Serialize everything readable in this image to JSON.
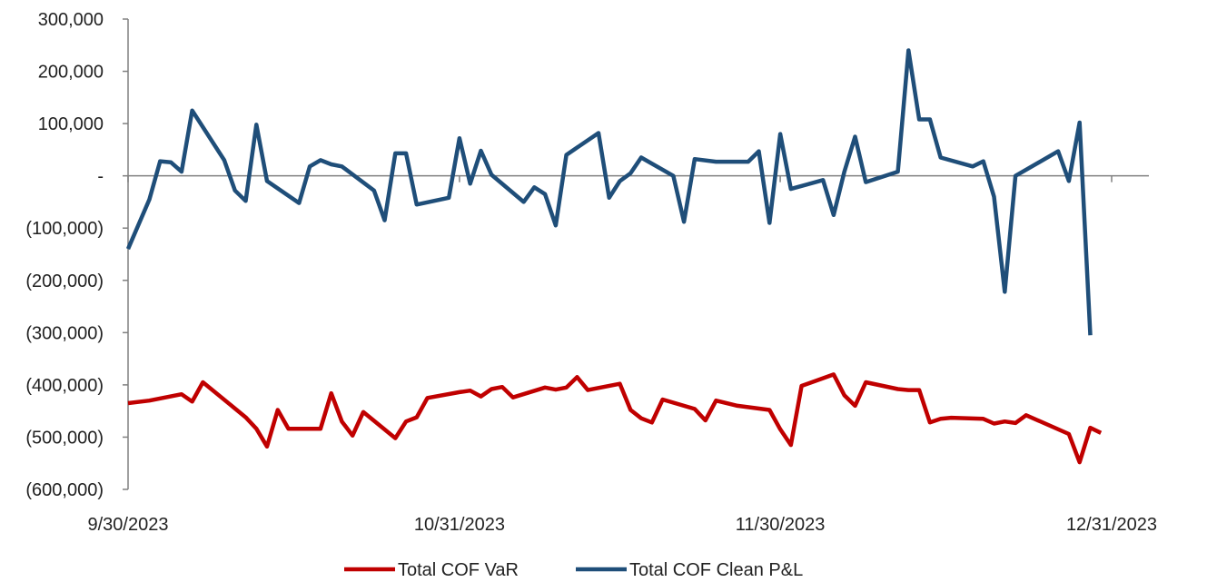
{
  "chart_data": {
    "type": "line",
    "title": "",
    "xlabel": "",
    "ylabel": "",
    "ylim": [
      -600000,
      300000
    ],
    "y_ticks": [
      {
        "value": 300000,
        "label": "300,000"
      },
      {
        "value": 200000,
        "label": "200,000"
      },
      {
        "value": 100000,
        "label": "100,000"
      },
      {
        "value": 0,
        "label": "-"
      },
      {
        "value": -100000,
        "label": "(100,000)"
      },
      {
        "value": -200000,
        "label": "(200,000)"
      },
      {
        "value": -300000,
        "label": "(300,000)"
      },
      {
        "value": -400000,
        "label": "(400,000)"
      },
      {
        "value": -500000,
        "label": "(500,000)"
      },
      {
        "value": -600000,
        "label": "(600,000)"
      }
    ],
    "xlim": [
      "2023-09-30",
      "2023-12-31"
    ],
    "x_ticks": [
      {
        "value": "2023-09-30",
        "label": "9/30/2023"
      },
      {
        "value": "2023-10-31",
        "label": "10/31/2023"
      },
      {
        "value": "2023-11-30",
        "label": "11/30/2023"
      },
      {
        "value": "2023-12-31",
        "label": "12/31/2023"
      }
    ],
    "grid": false,
    "legend_position": "bottom",
    "series": [
      {
        "name": "Total COF VaR",
        "color": "#c00000",
        "points": [
          [
            "2023-09-30",
            -435000
          ],
          [
            "2023-10-02",
            -430000
          ],
          [
            "2023-10-05",
            -418000
          ],
          [
            "2023-10-06",
            -432000
          ],
          [
            "2023-10-07",
            -395000
          ],
          [
            "2023-10-11",
            -462000
          ],
          [
            "2023-10-12",
            -484000
          ],
          [
            "2023-10-13",
            -518000
          ],
          [
            "2023-10-14",
            -448000
          ],
          [
            "2023-10-15",
            -484000
          ],
          [
            "2023-10-18",
            -484000
          ],
          [
            "2023-10-19",
            -416000
          ],
          [
            "2023-10-20",
            -470000
          ],
          [
            "2023-10-21",
            -497000
          ],
          [
            "2023-10-22",
            -452000
          ],
          [
            "2023-10-25",
            -502000
          ],
          [
            "2023-10-26",
            -470000
          ],
          [
            "2023-10-27",
            -462000
          ],
          [
            "2023-10-28",
            -425000
          ],
          [
            "2023-10-31",
            -414000
          ],
          [
            "2023-11-01",
            -411000
          ],
          [
            "2023-11-02",
            -422000
          ],
          [
            "2023-11-03",
            -408000
          ],
          [
            "2023-11-04",
            -404000
          ],
          [
            "2023-11-05",
            -424000
          ],
          [
            "2023-11-08",
            -405000
          ],
          [
            "2023-11-09",
            -409000
          ],
          [
            "2023-11-10",
            -405000
          ],
          [
            "2023-11-11",
            -385000
          ],
          [
            "2023-11-12",
            -410000
          ],
          [
            "2023-11-15",
            -398000
          ],
          [
            "2023-11-16",
            -448000
          ],
          [
            "2023-11-17",
            -464000
          ],
          [
            "2023-11-18",
            -472000
          ],
          [
            "2023-11-19",
            -428000
          ],
          [
            "2023-11-22",
            -446000
          ],
          [
            "2023-11-23",
            -468000
          ],
          [
            "2023-11-24",
            -430000
          ],
          [
            "2023-11-26",
            -440000
          ],
          [
            "2023-11-29",
            -448000
          ],
          [
            "2023-11-30",
            -485000
          ],
          [
            "2023-12-01",
            -515000
          ],
          [
            "2023-12-02",
            -402000
          ],
          [
            "2023-12-05",
            -380000
          ],
          [
            "2023-12-06",
            -420000
          ],
          [
            "2023-12-07",
            -440000
          ],
          [
            "2023-12-08",
            -395000
          ],
          [
            "2023-12-11",
            -408000
          ],
          [
            "2023-12-12",
            -410000
          ],
          [
            "2023-12-13",
            -410000
          ],
          [
            "2023-12-14",
            -472000
          ],
          [
            "2023-12-15",
            -465000
          ],
          [
            "2023-12-16",
            -463000
          ],
          [
            "2023-12-19",
            -465000
          ],
          [
            "2023-12-20",
            -474000
          ],
          [
            "2023-12-21",
            -470000
          ],
          [
            "2023-12-22",
            -473000
          ],
          [
            "2023-12-23",
            -458000
          ],
          [
            "2023-12-27",
            -494000
          ],
          [
            "2023-12-28",
            -548000
          ],
          [
            "2023-12-29",
            -482000
          ],
          [
            "2023-12-30",
            -492000
          ]
        ]
      },
      {
        "name": "Total COF Clean P&L",
        "color": "#1f4e79",
        "points": [
          [
            "2023-09-30",
            -140000
          ],
          [
            "2023-10-02",
            -45000
          ],
          [
            "2023-10-03",
            28000
          ],
          [
            "2023-10-04",
            26000
          ],
          [
            "2023-10-05",
            8000
          ],
          [
            "2023-10-06",
            125000
          ],
          [
            "2023-10-09",
            30000
          ],
          [
            "2023-10-10",
            -28000
          ],
          [
            "2023-10-11",
            -48000
          ],
          [
            "2023-10-12",
            98000
          ],
          [
            "2023-10-13",
            -10000
          ],
          [
            "2023-10-16",
            -52000
          ],
          [
            "2023-10-17",
            18000
          ],
          [
            "2023-10-18",
            30000
          ],
          [
            "2023-10-19",
            22000
          ],
          [
            "2023-10-20",
            18000
          ],
          [
            "2023-10-23",
            -28000
          ],
          [
            "2023-10-24",
            -85000
          ],
          [
            "2023-10-25",
            43000
          ],
          [
            "2023-10-26",
            43000
          ],
          [
            "2023-10-27",
            -55000
          ],
          [
            "2023-10-30",
            -42000
          ],
          [
            "2023-10-31",
            72000
          ],
          [
            "2023-11-01",
            -15000
          ],
          [
            "2023-11-02",
            48000
          ],
          [
            "2023-11-03",
            2000
          ],
          [
            "2023-11-06",
            -50000
          ],
          [
            "2023-11-07",
            -22000
          ],
          [
            "2023-11-08",
            -35000
          ],
          [
            "2023-11-09",
            -95000
          ],
          [
            "2023-11-10",
            40000
          ],
          [
            "2023-11-13",
            82000
          ],
          [
            "2023-11-14",
            -42000
          ],
          [
            "2023-11-15",
            -10000
          ],
          [
            "2023-11-16",
            5000
          ],
          [
            "2023-11-17",
            35000
          ],
          [
            "2023-11-20",
            0
          ],
          [
            "2023-11-21",
            -88000
          ],
          [
            "2023-11-22",
            32000
          ],
          [
            "2023-11-24",
            27000
          ],
          [
            "2023-11-27",
            27000
          ],
          [
            "2023-11-28",
            47000
          ],
          [
            "2023-11-29",
            -90000
          ],
          [
            "2023-11-30",
            80000
          ],
          [
            "2023-12-01",
            -25000
          ],
          [
            "2023-12-04",
            -8000
          ],
          [
            "2023-12-05",
            -75000
          ],
          [
            "2023-12-06",
            8000
          ],
          [
            "2023-12-07",
            75000
          ],
          [
            "2023-12-08",
            -12000
          ],
          [
            "2023-12-11",
            8000
          ],
          [
            "2023-12-12",
            240000
          ],
          [
            "2023-12-13",
            108000
          ],
          [
            "2023-12-14",
            108000
          ],
          [
            "2023-12-15",
            35000
          ],
          [
            "2023-12-18",
            18000
          ],
          [
            "2023-12-19",
            28000
          ],
          [
            "2023-12-20",
            -40000
          ],
          [
            "2023-12-21",
            -222000
          ],
          [
            "2023-12-22",
            0
          ],
          [
            "2023-12-26",
            47000
          ],
          [
            "2023-12-27",
            -10000
          ],
          [
            "2023-12-28",
            102000
          ],
          [
            "2023-12-29",
            -305000
          ]
        ]
      }
    ]
  }
}
